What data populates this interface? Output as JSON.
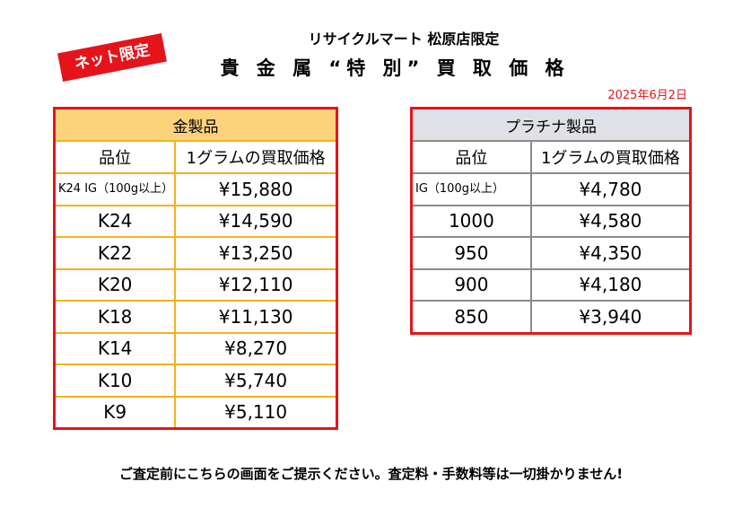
{
  "badge": "ネット限定",
  "store_title": "リサイクルマート 松原店限定",
  "main_title": "貴 金 属 “特 別” 買 取 価 格",
  "date": "2025年6月2日",
  "gold": {
    "category": "金製品",
    "col_grade": "品位",
    "col_price": "1グラムの買取価格",
    "rows": [
      {
        "grade": "K24 IG（100g以上）",
        "price": "¥15,880"
      },
      {
        "grade": "K24",
        "price": "¥14,590"
      },
      {
        "grade": "K22",
        "price": "¥13,250"
      },
      {
        "grade": "K20",
        "price": "¥12,110"
      },
      {
        "grade": "K18",
        "price": "¥11,130"
      },
      {
        "grade": "K14",
        "price": "¥8,270"
      },
      {
        "grade": "K10",
        "price": "¥5,740"
      },
      {
        "grade": "K9",
        "price": "¥5,110"
      }
    ]
  },
  "platinum": {
    "category": "プラチナ製品",
    "col_grade": "品位",
    "col_price": "1グラムの買取価格",
    "rows": [
      {
        "grade": "IG（100g以上）",
        "price": "¥4,780"
      },
      {
        "grade": "1000",
        "price": "¥4,580"
      },
      {
        "grade": "950",
        "price": "¥4,350"
      },
      {
        "grade": "900",
        "price": "¥4,180"
      },
      {
        "grade": "850",
        "price": "¥3,940"
      }
    ]
  },
  "footer": "ご査定前にこちらの画面をご提示ください。査定料・手数料等は一切掛かりません!",
  "colors": {
    "accent_red": "#e5141b",
    "gold_header": "#fcd37a",
    "gold_border": "#f3b21f",
    "platinum_header": "#dfe1e6",
    "platinum_border": "#8b8b8b"
  }
}
